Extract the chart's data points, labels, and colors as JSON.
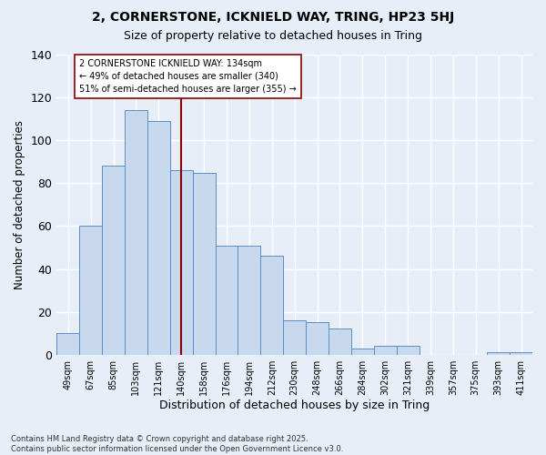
{
  "title1": "2, CORNERSTONE, ICKNIELD WAY, TRING, HP23 5HJ",
  "title2": "Size of property relative to detached houses in Tring",
  "xlabel": "Distribution of detached houses by size in Tring",
  "ylabel": "Number of detached properties",
  "categories": [
    "49sqm",
    "67sqm",
    "85sqm",
    "103sqm",
    "121sqm",
    "140sqm",
    "158sqm",
    "176sqm",
    "194sqm",
    "212sqm",
    "230sqm",
    "248sqm",
    "266sqm",
    "284sqm",
    "302sqm",
    "321sqm",
    "339sqm",
    "357sqm",
    "375sqm",
    "393sqm",
    "411sqm"
  ],
  "values": [
    10,
    60,
    88,
    114,
    109,
    86,
    85,
    51,
    51,
    46,
    16,
    15,
    12,
    3,
    4,
    4,
    0,
    0,
    0,
    1,
    1
  ],
  "bar_color": "#c9d9ed",
  "bar_edge_color": "#5b8ec7",
  "bar_width": 1.0,
  "vline_x": 5.0,
  "vline_color": "#8b0000",
  "annotation_text": "2 CORNERSTONE ICKNIELD WAY: 134sqm\n← 49% of detached houses are smaller (340)\n51% of semi-detached houses are larger (355) →",
  "annotation_box_color": "white",
  "annotation_box_edge": "#8b0000",
  "ylim": [
    0,
    140
  ],
  "yticks": [
    0,
    20,
    40,
    60,
    80,
    100,
    120,
    140
  ],
  "bg_color": "#e8eef8",
  "grid_color": "#ffffff",
  "footer": "Contains HM Land Registry data © Crown copyright and database right 2025.\nContains public sector information licensed under the Open Government Licence v3.0."
}
